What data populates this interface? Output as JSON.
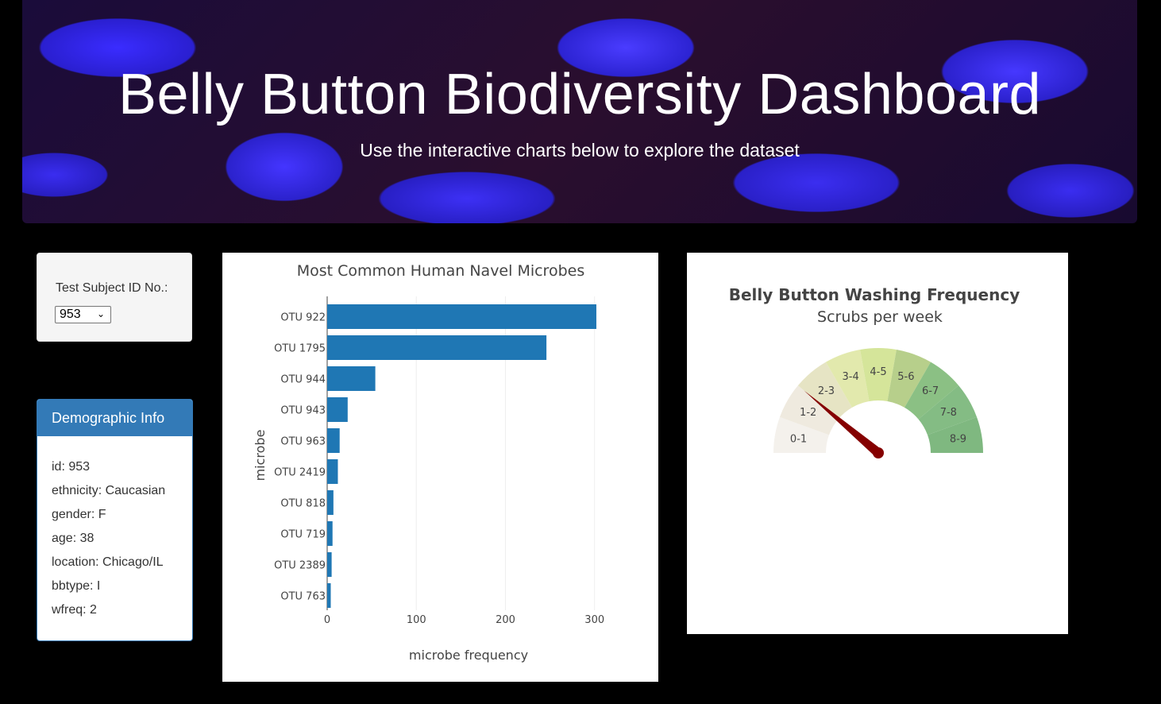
{
  "header": {
    "title": "Belly Button Biodiversity Dashboard",
    "subtitle": "Use the interactive charts below to explore the dataset"
  },
  "selector": {
    "label": "Test Subject ID No.:",
    "value": "953"
  },
  "demographics": {
    "title": "Demographic Info",
    "rows": [
      "id: 953",
      "ethnicity: Caucasian",
      "gender: F",
      "age: 38",
      "location: Chicago/IL",
      "bbtype: I",
      "wfreq: 2"
    ]
  },
  "chart_data": [
    {
      "type": "bar",
      "orientation": "horizontal",
      "title": "Most Common Human Navel Microbes",
      "xlabel": "microbe frequency",
      "ylabel": "microbe",
      "categories": [
        "OTU 922",
        "OTU 1795",
        "OTU 944",
        "OTU 943",
        "OTU 963",
        "OTU 2419",
        "OTU 818",
        "OTU 719",
        "OTU 2389",
        "OTU 763"
      ],
      "values": [
        302,
        246,
        54,
        23,
        14,
        12,
        7,
        6,
        5,
        4
      ],
      "xticks": [
        0,
        100,
        200,
        300
      ],
      "xlim": [
        0,
        335
      ],
      "color": "#1f77b4",
      "grid": true
    },
    {
      "type": "gauge",
      "title": "Belly Button Washing Frequency",
      "subtitle": "Scrubs per week",
      "segments": [
        "0-1",
        "1-2",
        "2-3",
        "3-4",
        "4-5",
        "5-6",
        "6-7",
        "7-8",
        "8-9"
      ],
      "colors": [
        "#f4f1ec",
        "#efeadf",
        "#e6e4c4",
        "#e2e9ad",
        "#d5e59a",
        "#b7cf8b",
        "#8bc084",
        "#84bc84",
        "#7fb880"
      ],
      "value": 2,
      "range": [
        0,
        9
      ],
      "needle_color": "#850000"
    }
  ]
}
